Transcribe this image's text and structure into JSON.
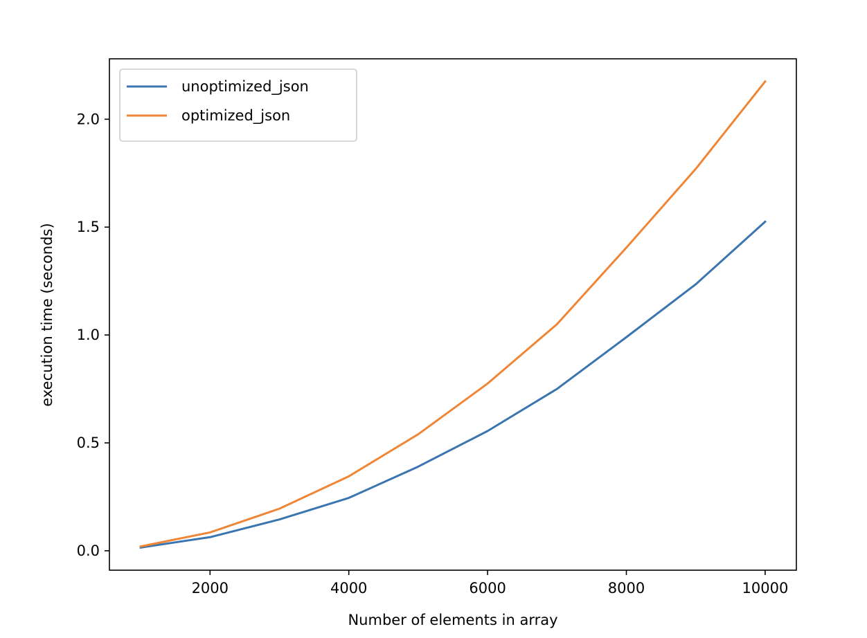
{
  "chart_data": {
    "type": "line",
    "title": "",
    "xlabel": "Number of elements in array",
    "ylabel": "execution time (seconds)",
    "xlim": [
      550,
      10450
    ],
    "ylim": [
      -0.09,
      2.28
    ],
    "xticks": [
      2000,
      4000,
      6000,
      8000,
      10000
    ],
    "xtick_labels": [
      "2000",
      "4000",
      "6000",
      "8000",
      "10000"
    ],
    "yticks": [
      0.0,
      0.5,
      1.0,
      1.5,
      2.0
    ],
    "ytick_labels": [
      "0.0",
      "0.5",
      "1.0",
      "1.5",
      "2.0"
    ],
    "grid": false,
    "legend_position": "top-left",
    "x": [
      1000,
      2000,
      3000,
      4000,
      5000,
      6000,
      7000,
      8000,
      9000,
      10000
    ],
    "series": [
      {
        "name": "unoptimized_json",
        "color": "#3a75af",
        "values": [
          0.015,
          0.063,
          0.145,
          0.245,
          0.39,
          0.555,
          0.75,
          0.99,
          1.235,
          1.525
        ]
      },
      {
        "name": "optimized_json",
        "color": "#ef8636",
        "values": [
          0.02,
          0.085,
          0.195,
          0.345,
          0.54,
          0.775,
          1.05,
          1.405,
          1.77,
          2.175
        ]
      }
    ]
  }
}
